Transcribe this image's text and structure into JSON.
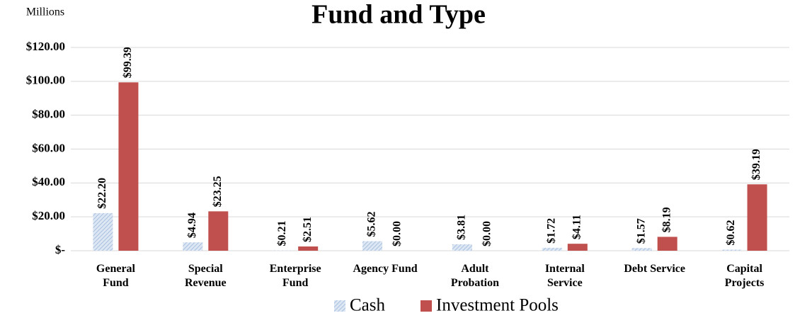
{
  "chart_data": {
    "type": "bar",
    "title": "Fund and Type",
    "y_unit_label": "Millions",
    "categories": [
      "General\nFund",
      "Special\nRevenue",
      "Enterprise\nFund",
      "Agency Fund",
      "Adult\nProbation",
      "Internal\nService",
      "Debt Service",
      "Capital\nProjects"
    ],
    "series": [
      {
        "name": "Cash",
        "color": "#a8c0e0",
        "pattern": "hatch",
        "values": [
          22.2,
          4.94,
          0.21,
          5.62,
          3.81,
          1.72,
          1.57,
          0.62
        ],
        "value_labels": [
          "$22.20",
          "$4.94",
          "$0.21",
          "$5.62",
          "$3.81",
          "$1.72",
          "$1.57",
          "$0.62"
        ]
      },
      {
        "name": "Investment Pools",
        "color": "#c0504d",
        "values": [
          99.39,
          23.25,
          2.51,
          0.0,
          0.0,
          4.11,
          8.19,
          39.19
        ],
        "value_labels": [
          "$99.39",
          "$23.25",
          "$2.51",
          "$0.00",
          "$0.00",
          "$4.11",
          "$8.19",
          "$39.19"
        ]
      }
    ],
    "ylim": [
      0,
      120
    ],
    "yticks": [
      {
        "value": 0,
        "label": "$-"
      },
      {
        "value": 20,
        "label": "$20.00"
      },
      {
        "value": 40,
        "label": "$40.00"
      },
      {
        "value": 60,
        "label": "$60.00"
      },
      {
        "value": 80,
        "label": "$80.00"
      },
      {
        "value": 100,
        "label": "$100.00"
      },
      {
        "value": 120,
        "label": "$120.00"
      }
    ],
    "grid": true,
    "legend": "bottom"
  }
}
